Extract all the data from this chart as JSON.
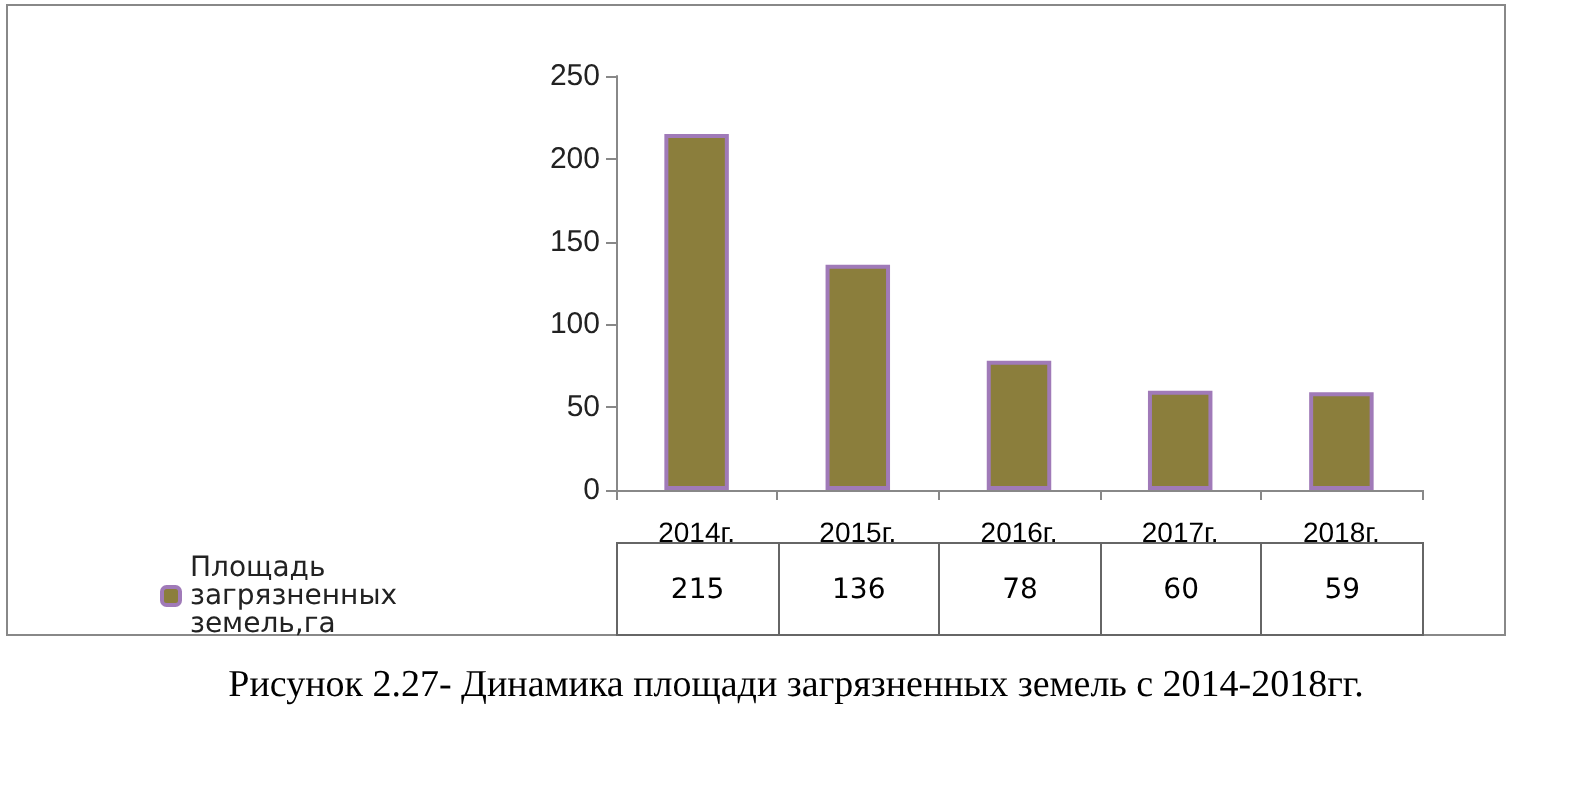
{
  "chart_data": {
    "type": "bar",
    "categories": [
      "2014г.",
      "2015г.",
      "2016г.",
      "2017г.",
      "2018г."
    ],
    "series": [
      {
        "name": "Площадь загрязненных земель,га",
        "color": "#8b7e3c",
        "values": [
          215,
          136,
          78,
          60,
          59
        ]
      }
    ],
    "ylim": [
      0,
      250
    ],
    "yticks": [
      0,
      50,
      100,
      150,
      200,
      250
    ],
    "grid": false,
    "legend": "bottom",
    "data_labels": true,
    "annotations": [
      "Рисунок 2.27- Динамика площади загрязненных земель с 2014-2018гг."
    ]
  }
}
